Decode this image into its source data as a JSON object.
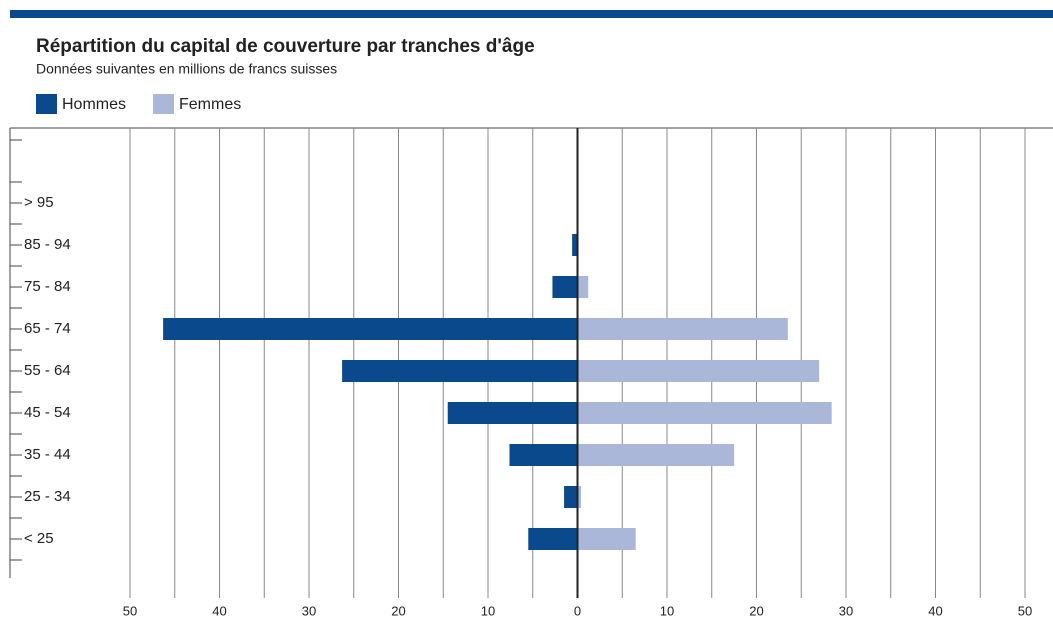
{
  "chart_data": {
    "type": "bar",
    "title": "Répartition du capital de couverture par tranches d'âge",
    "subtitle": "Données suivantes en millions de francs suisses",
    "orientation": "horizontal",
    "categories": [
      null,
      "> 95",
      "85 - 94",
      "75 - 84",
      "65 - 74",
      "55 - 64",
      "45 - 54",
      "35 - 44",
      "25 - 34",
      "< 25",
      null
    ],
    "series": [
      {
        "name": "Hommes",
        "color": "#0a4a8c",
        "values": [
          null,
          0,
          -0.6,
          -2.8,
          -46.3,
          -26.3,
          -14.5,
          -7.6,
          -1.5,
          -5.5,
          null
        ]
      },
      {
        "name": "Femmes",
        "color": "#aab7d9",
        "values": [
          null,
          0,
          0,
          1.2,
          23.5,
          27.0,
          28.4,
          17.5,
          0.4,
          6.5,
          null
        ]
      }
    ],
    "xlim": [
      -50,
      50
    ],
    "xticks": [
      {
        "value": -50,
        "label": "50"
      },
      {
        "value": -40,
        "label": "40"
      },
      {
        "value": -30,
        "label": "30"
      },
      {
        "value": -20,
        "label": "20"
      },
      {
        "value": -10,
        "label": "10"
      },
      0,
      10,
      20,
      30,
      40,
      50
    ],
    "grid": true,
    "legend": "top-left"
  }
}
